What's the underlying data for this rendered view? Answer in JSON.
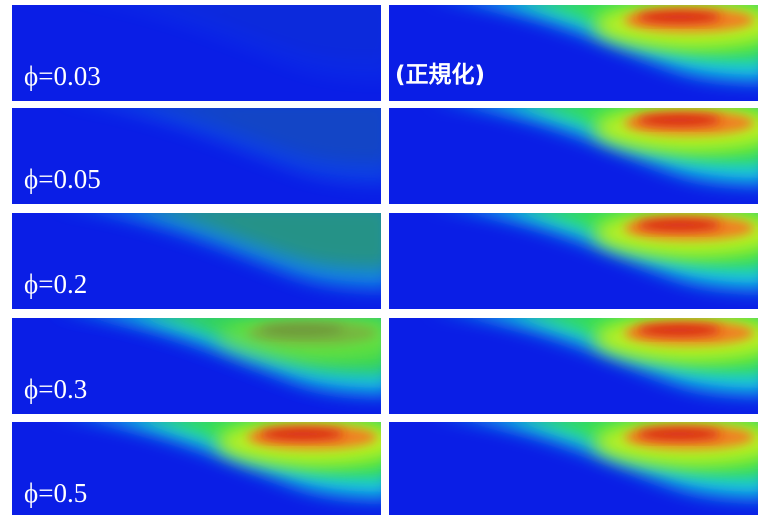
{
  "rows": [
    {
      "label": "ϕ=0.03"
    },
    {
      "label": "ϕ=0.05"
    },
    {
      "label": "ϕ=0.2"
    },
    {
      "label": "ϕ=0.3"
    },
    {
      "label": "ϕ=0.5"
    }
  ],
  "normalized_label": "(正規化)"
}
